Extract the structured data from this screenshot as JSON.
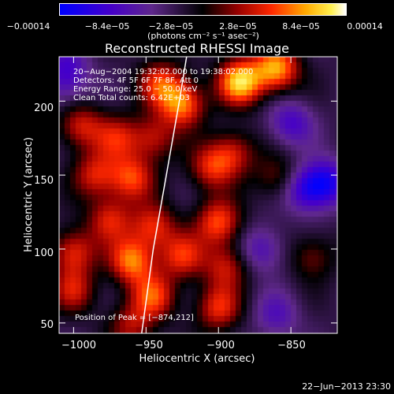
{
  "chart_data": {
    "type": "heatmap",
    "title": "Reconstructed RHESSI Image",
    "xlabel": "Heliocentric X (arcsec)",
    "ylabel": "Heliocentric Y (arcsec)",
    "xlim": [
      -1010,
      -818
    ],
    "ylim": [
      43,
      230
    ],
    "xticks": [
      -1000,
      -950,
      -900,
      -850
    ],
    "yticks": [
      50,
      100,
      150,
      200
    ],
    "xtick_labels": [
      "−1000",
      "−950",
      "−900",
      "−850"
    ],
    "ytick_labels": [
      "50",
      "100",
      "150",
      "200"
    ],
    "colorbar": {
      "range": [
        -0.00014,
        0.00014
      ],
      "tick_values": [
        -0.00014,
        -8.4e-05,
        -2.8e-05,
        2.8e-05,
        8.4e-05,
        0.00014
      ],
      "tick_labels": [
        "−0.00014",
        "−8.4e−05",
        "−2.8e−05",
        "2.8e−05",
        "8.4e−05",
        "0.00014"
      ],
      "unit_label": "(photons cm⁻² s⁻¹ asec⁻²)"
    },
    "annotations": [
      "20−Aug−2004 19:32:02.000 to 19:38:02.000",
      "Detectors: 4F 5F 6F 7F 8F, Att 0",
      "Energy Range: 25.0 − 50.0 keV",
      "Clean     Total counts: 6.42E+03"
    ],
    "peak_label": "Position of Peak = [−874,212]",
    "peak_position": [
      -874,
      212
    ],
    "limb_curve": [
      [
        -953,
        43
      ],
      [
        -945,
        100
      ],
      [
        -936,
        150
      ],
      [
        -927,
        200
      ],
      [
        -922,
        230
      ]
    ],
    "blobs": [
      {
        "x": -885,
        "y": 213,
        "v": 1.0
      },
      {
        "x": -860,
        "y": 222,
        "v": 0.9
      },
      {
        "x": -940,
        "y": 212,
        "v": 0.6
      },
      {
        "x": -925,
        "y": 198,
        "v": 0.8
      },
      {
        "x": -995,
        "y": 183,
        "v": 0.55
      },
      {
        "x": -970,
        "y": 175,
        "v": 0.5
      },
      {
        "x": -945,
        "y": 175,
        "v": 0.5
      },
      {
        "x": -985,
        "y": 150,
        "v": 0.55
      },
      {
        "x": -960,
        "y": 148,
        "v": 0.65
      },
      {
        "x": -905,
        "y": 155,
        "v": 0.55
      },
      {
        "x": -890,
        "y": 165,
        "v": 0.5
      },
      {
        "x": -975,
        "y": 120,
        "v": 0.55
      },
      {
        "x": -945,
        "y": 115,
        "v": 0.6
      },
      {
        "x": -900,
        "y": 118,
        "v": 0.7
      },
      {
        "x": -1000,
        "y": 98,
        "v": 0.6
      },
      {
        "x": -960,
        "y": 92,
        "v": 0.8
      },
      {
        "x": -925,
        "y": 95,
        "v": 0.6
      },
      {
        "x": -895,
        "y": 88,
        "v": 0.5
      },
      {
        "x": -1000,
        "y": 72,
        "v": 0.5
      },
      {
        "x": -945,
        "y": 68,
        "v": 0.65
      },
      {
        "x": -900,
        "y": 60,
        "v": 0.6
      },
      {
        "x": -960,
        "y": 48,
        "v": 0.45
      },
      {
        "x": -860,
        "y": 148,
        "v": 0.35
      },
      {
        "x": -835,
        "y": 95,
        "v": 0.35
      },
      {
        "x": -850,
        "y": 185,
        "v": -0.45
      },
      {
        "x": -840,
        "y": 140,
        "v": -0.55
      },
      {
        "x": -825,
        "y": 145,
        "v": -0.6
      },
      {
        "x": -870,
        "y": 100,
        "v": -0.4
      },
      {
        "x": -860,
        "y": 55,
        "v": -0.35
      },
      {
        "x": -1005,
        "y": 225,
        "v": -0.35
      },
      {
        "x": -1005,
        "y": 210,
        "v": -0.3
      }
    ]
  },
  "footer": {
    "date": "22−Jun−2013 23:30"
  }
}
